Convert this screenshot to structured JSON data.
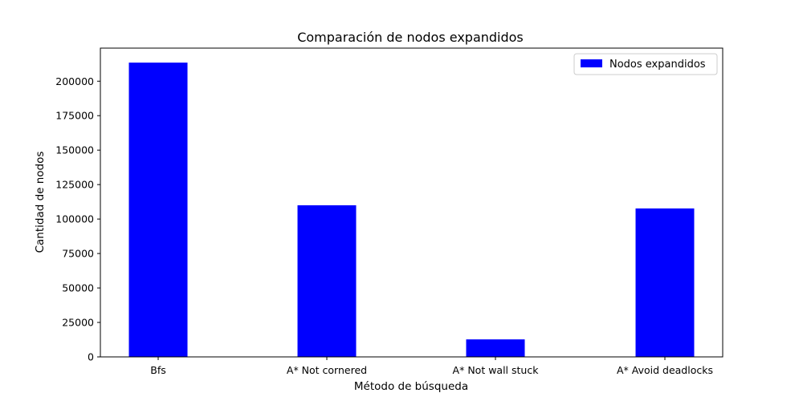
{
  "chart_data": {
    "type": "bar",
    "title": "Comparación de nodos expandidos",
    "xlabel": "Método de búsqueda",
    "ylabel": "Cantidad de nodos",
    "categories": [
      "Bfs",
      "A* Not cornered",
      "A* Not wall stuck",
      "A* Avoid deadlocks"
    ],
    "series": [
      {
        "name": "Nodos expandidos",
        "color": "#0000ff",
        "values": [
          213500,
          110000,
          12700,
          107700
        ]
      }
    ],
    "ylim": [
      0,
      224000
    ],
    "yticks": [
      0,
      25000,
      50000,
      75000,
      100000,
      125000,
      150000,
      175000,
      200000
    ],
    "ytick_labels": [
      "0",
      "25000",
      "50000",
      "75000",
      "100000",
      "125000",
      "150000",
      "175000",
      "200000"
    ],
    "grid": false,
    "legend_position": "top-right"
  }
}
